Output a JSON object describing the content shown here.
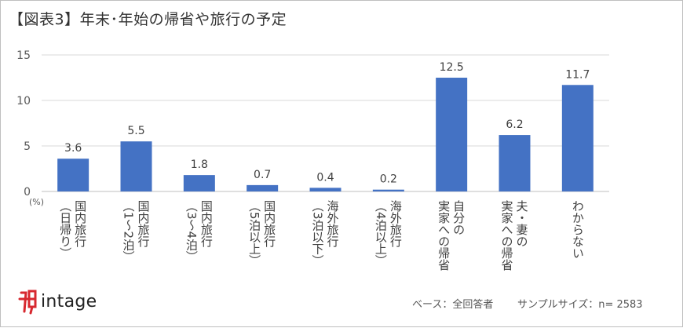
{
  "title": "【図表3】年末･年始の帰省や旅行の予定",
  "logo": {
    "name": "intage",
    "icon": "intage-logo-icon",
    "accent": "#d7282f"
  },
  "footer": {
    "base": "ベース：全回答者",
    "sample": "サンプルサイズ：n= 2583"
  },
  "chart_data": {
    "type": "bar",
    "unit_label": "(%)",
    "ylim": [
      0,
      15
    ],
    "yticks": [
      0,
      5,
      10,
      15
    ],
    "grid": true,
    "bar_color": "#4472c4",
    "categories": [
      {
        "primary": "国内旅行",
        "secondary": "（日帰り）"
      },
      {
        "primary": "国内旅行",
        "secondary": "（1～2泊）"
      },
      {
        "primary": "国内旅行",
        "secondary": "（3～4泊）"
      },
      {
        "primary": "国内旅行",
        "secondary": "（5泊以上）"
      },
      {
        "primary": "海外旅行",
        "secondary": "（3泊以下）"
      },
      {
        "primary": "海外旅行",
        "secondary": "（4泊以上）"
      },
      {
        "primary": "自分の",
        "secondary": "実家への帰省"
      },
      {
        "primary": "夫・妻の",
        "secondary": "実家への帰省"
      },
      {
        "primary": "わからない",
        "secondary": ""
      }
    ],
    "values": [
      3.6,
      5.5,
      1.8,
      0.7,
      0.4,
      0.2,
      12.5,
      6.2,
      11.7
    ]
  }
}
